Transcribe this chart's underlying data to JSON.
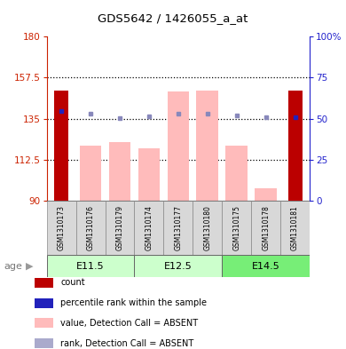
{
  "title": "GDS5642 / 1426055_a_at",
  "samples": [
    "GSM1310173",
    "GSM1310176",
    "GSM1310179",
    "GSM1310174",
    "GSM1310177",
    "GSM1310180",
    "GSM1310175",
    "GSM1310178",
    "GSM1310181"
  ],
  "age_groups": [
    {
      "label": "E11.5",
      "start": 0,
      "end": 3
    },
    {
      "label": "E12.5",
      "start": 3,
      "end": 6
    },
    {
      "label": "E14.5",
      "start": 6,
      "end": 9
    }
  ],
  "age_colors": [
    "#ccffcc",
    "#ccffcc",
    "#77ee77"
  ],
  "ylim_left": [
    90,
    180
  ],
  "ylim_right": [
    0,
    100
  ],
  "yticks_left": [
    90,
    112.5,
    135,
    157.5,
    180
  ],
  "yticks_right": [
    0,
    25,
    50,
    75,
    100
  ],
  "ytick_labels_left": [
    "90",
    "112.5",
    "135",
    "157.5",
    "180"
  ],
  "ytick_labels_right": [
    "0",
    "25",
    "50",
    "75",
    "100%"
  ],
  "bar_values": [
    150.5,
    120.0,
    122.0,
    118.5,
    150.0,
    150.5,
    120.0,
    97.0,
    150.5
  ],
  "rank_values_left": [
    139.0,
    137.5,
    135.5,
    136.5,
    137.5,
    137.5,
    137.0,
    136.0,
    136.0
  ],
  "count_bars": [
    true,
    false,
    false,
    false,
    false,
    false,
    false,
    false,
    true
  ],
  "count_bar_color": "#bb0000",
  "pink_bar_color": "#ffbbbb",
  "blue_sq_color": "#8888bb",
  "blue_sq_color2": "#2222bb",
  "dotted_line_y": [
    157.5,
    135.0,
    112.5
  ],
  "ylabel_left_color": "#cc2200",
  "ylabel_right_color": "#2222cc",
  "legend_colors": [
    "#bb0000",
    "#2222bb",
    "#ffbbbb",
    "#aaaacc"
  ],
  "legend_labels": [
    "count",
    "percentile rank within the sample",
    "value, Detection Call = ABSENT",
    "rank, Detection Call = ABSENT"
  ]
}
